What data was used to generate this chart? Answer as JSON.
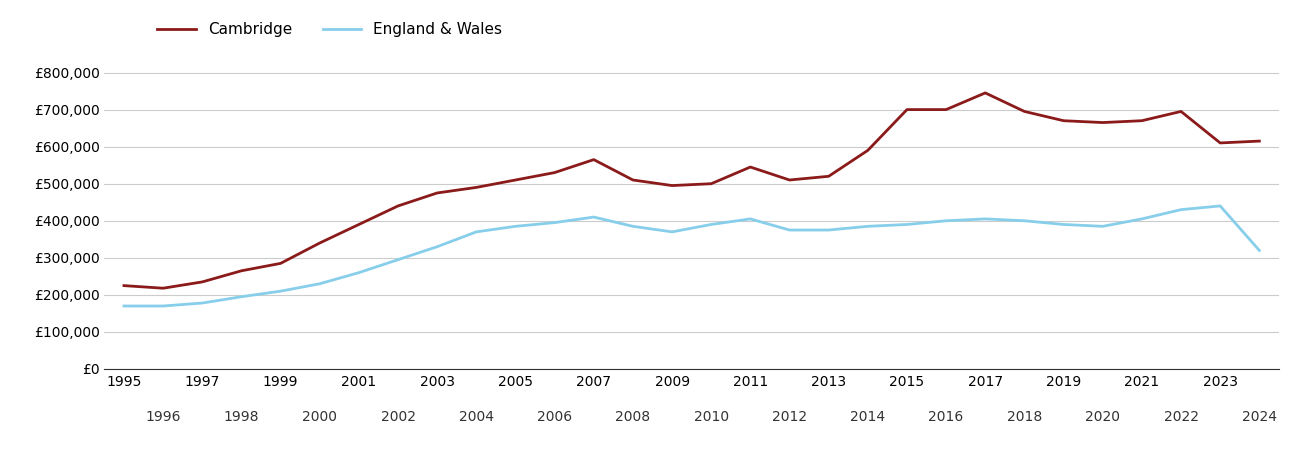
{
  "cambridge": [
    [
      1995,
      225000
    ],
    [
      1996,
      218000
    ],
    [
      1997,
      235000
    ],
    [
      1998,
      265000
    ],
    [
      1999,
      285000
    ],
    [
      2000,
      340000
    ],
    [
      2001,
      390000
    ],
    [
      2002,
      440000
    ],
    [
      2003,
      475000
    ],
    [
      2004,
      490000
    ],
    [
      2005,
      510000
    ],
    [
      2006,
      530000
    ],
    [
      2007,
      565000
    ],
    [
      2008,
      510000
    ],
    [
      2009,
      495000
    ],
    [
      2010,
      500000
    ],
    [
      2011,
      545000
    ],
    [
      2012,
      510000
    ],
    [
      2013,
      520000
    ],
    [
      2014,
      590000
    ],
    [
      2015,
      700000
    ],
    [
      2016,
      700000
    ],
    [
      2017,
      745000
    ],
    [
      2018,
      695000
    ],
    [
      2019,
      670000
    ],
    [
      2020,
      665000
    ],
    [
      2021,
      670000
    ],
    [
      2022,
      695000
    ],
    [
      2023,
      610000
    ],
    [
      2024,
      615000
    ]
  ],
  "england_wales": [
    [
      1995,
      170000
    ],
    [
      1996,
      170000
    ],
    [
      1997,
      178000
    ],
    [
      1998,
      195000
    ],
    [
      1999,
      210000
    ],
    [
      2000,
      230000
    ],
    [
      2001,
      260000
    ],
    [
      2002,
      295000
    ],
    [
      2003,
      330000
    ],
    [
      2004,
      370000
    ],
    [
      2005,
      385000
    ],
    [
      2006,
      395000
    ],
    [
      2007,
      410000
    ],
    [
      2008,
      385000
    ],
    [
      2009,
      370000
    ],
    [
      2010,
      390000
    ],
    [
      2011,
      405000
    ],
    [
      2012,
      375000
    ],
    [
      2013,
      375000
    ],
    [
      2014,
      385000
    ],
    [
      2015,
      390000
    ],
    [
      2016,
      400000
    ],
    [
      2017,
      405000
    ],
    [
      2018,
      400000
    ],
    [
      2019,
      390000
    ],
    [
      2020,
      385000
    ],
    [
      2021,
      405000
    ],
    [
      2022,
      430000
    ],
    [
      2023,
      440000
    ],
    [
      2024,
      320000
    ]
  ],
  "cambridge_color": "#8B1A1A",
  "england_wales_color": "#87CEEB",
  "background_color": "#ffffff",
  "grid_color": "#cccccc",
  "cambridge_label": "Cambridge",
  "england_wales_label": "England & Wales",
  "ylim": [
    0,
    850000
  ],
  "yticks": [
    0,
    100000,
    200000,
    300000,
    400000,
    500000,
    600000,
    700000,
    800000
  ],
  "line_width": 2.0,
  "xlim": [
    1994.5,
    2024.5
  ],
  "odd_years": [
    1995,
    1997,
    1999,
    2001,
    2003,
    2005,
    2007,
    2009,
    2011,
    2013,
    2015,
    2017,
    2019,
    2021,
    2023
  ],
  "even_years": [
    1996,
    1998,
    2000,
    2002,
    2004,
    2006,
    2008,
    2010,
    2012,
    2014,
    2016,
    2018,
    2020,
    2022,
    2024
  ],
  "tick_fontsize": 10,
  "legend_fontsize": 11
}
